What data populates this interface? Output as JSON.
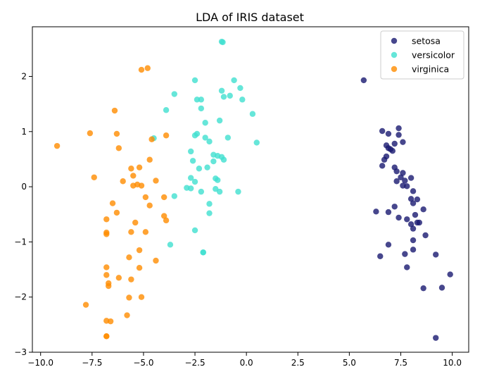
{
  "chart_data": {
    "type": "scatter",
    "title": "LDA of IRIS dataset",
    "xlabel": "",
    "ylabel": "",
    "xlim": [
      -10.4,
      10.8
    ],
    "ylim": [
      -3.0,
      2.9
    ],
    "xticks": [
      -10.0,
      -7.5,
      -5.0,
      -2.5,
      0.0,
      2.5,
      5.0,
      7.5,
      10.0
    ],
    "xtick_labels": [
      "−10.0",
      "−7.5",
      "−5.0",
      "−2.5",
      "0.0",
      "2.5",
      "5.0",
      "7.5",
      "10.0"
    ],
    "yticks": [
      -3,
      -2,
      -1,
      0,
      1,
      2
    ],
    "ytick_labels": [
      "−3",
      "−2",
      "−1",
      "0",
      "1",
      "2"
    ],
    "grid": false,
    "legend_position": "top-right",
    "series": [
      {
        "name": "setosa",
        "color": "#191970",
        "points": [
          [
            5.7,
            1.93
          ],
          [
            6.6,
            1.01
          ],
          [
            6.9,
            0.96
          ],
          [
            7.4,
            1.06
          ],
          [
            7.4,
            0.94
          ],
          [
            7.6,
            0.81
          ],
          [
            6.8,
            0.75
          ],
          [
            6.9,
            0.7
          ],
          [
            7.2,
            0.78
          ],
          [
            7.0,
            0.68
          ],
          [
            7.1,
            0.65
          ],
          [
            6.8,
            0.55
          ],
          [
            6.7,
            0.49
          ],
          [
            6.6,
            0.38
          ],
          [
            7.2,
            0.35
          ],
          [
            7.3,
            0.28
          ],
          [
            7.6,
            0.25
          ],
          [
            7.5,
            0.17
          ],
          [
            7.7,
            0.11
          ],
          [
            8.0,
            0.16
          ],
          [
            7.3,
            0.1
          ],
          [
            7.6,
            0.02
          ],
          [
            7.8,
            0.01
          ],
          [
            8.1,
            -0.08
          ],
          [
            8.0,
            -0.22
          ],
          [
            8.3,
            -0.23
          ],
          [
            8.1,
            -0.3
          ],
          [
            8.6,
            -0.41
          ],
          [
            8.2,
            -0.51
          ],
          [
            6.3,
            -0.45
          ],
          [
            6.9,
            -0.46
          ],
          [
            7.2,
            -0.36
          ],
          [
            7.4,
            -0.56
          ],
          [
            7.8,
            -0.59
          ],
          [
            8.0,
            -0.68
          ],
          [
            8.3,
            -0.65
          ],
          [
            8.4,
            -0.65
          ],
          [
            8.1,
            -0.76
          ],
          [
            8.7,
            -0.88
          ],
          [
            8.1,
            -0.97
          ],
          [
            6.9,
            -1.05
          ],
          [
            6.5,
            -1.26
          ],
          [
            7.7,
            -1.22
          ],
          [
            8.1,
            -1.14
          ],
          [
            9.2,
            -1.23
          ],
          [
            7.8,
            -1.46
          ],
          [
            8.6,
            -1.84
          ],
          [
            9.5,
            -1.83
          ],
          [
            9.9,
            -1.59
          ],
          [
            9.2,
            -2.74
          ]
        ]
      },
      {
        "name": "versicolor",
        "color": "#40e0d0",
        "points": [
          [
            -1.2,
            2.63
          ],
          [
            -1.15,
            2.62
          ],
          [
            -2.5,
            1.93
          ],
          [
            -0.6,
            1.93
          ],
          [
            -0.3,
            1.79
          ],
          [
            -1.2,
            1.74
          ],
          [
            -0.8,
            1.65
          ],
          [
            -1.1,
            1.63
          ],
          [
            -3.5,
            1.68
          ],
          [
            -2.4,
            1.58
          ],
          [
            -2.2,
            1.58
          ],
          [
            -0.2,
            1.58
          ],
          [
            0.3,
            1.32
          ],
          [
            -3.9,
            1.39
          ],
          [
            -2.2,
            1.42
          ],
          [
            -1.3,
            1.2
          ],
          [
            -2.0,
            1.16
          ],
          [
            -2.4,
            0.96
          ],
          [
            -2.5,
            0.93
          ],
          [
            -2.0,
            0.89
          ],
          [
            -0.9,
            0.89
          ],
          [
            -4.5,
            0.88
          ],
          [
            -1.8,
            0.82
          ],
          [
            0.5,
            0.8
          ],
          [
            -2.7,
            0.64
          ],
          [
            -1.6,
            0.58
          ],
          [
            -1.4,
            0.56
          ],
          [
            -1.2,
            0.54
          ],
          [
            -1.1,
            0.49
          ],
          [
            -1.6,
            0.46
          ],
          [
            -2.6,
            0.47
          ],
          [
            -2.3,
            0.33
          ],
          [
            -1.9,
            0.35
          ],
          [
            -1.5,
            0.15
          ],
          [
            -1.4,
            0.12
          ],
          [
            -2.7,
            0.16
          ],
          [
            -2.5,
            0.09
          ],
          [
            -2.9,
            -0.02
          ],
          [
            -2.7,
            -0.03
          ],
          [
            -1.5,
            -0.04
          ],
          [
            -2.2,
            -0.09
          ],
          [
            -1.3,
            -0.09
          ],
          [
            -0.4,
            -0.09
          ],
          [
            -3.5,
            -0.17
          ],
          [
            -1.8,
            -0.31
          ],
          [
            -1.8,
            -0.48
          ],
          [
            -2.5,
            -0.79
          ],
          [
            -3.7,
            -1.05
          ],
          [
            -2.1,
            -1.19
          ],
          [
            -2.1,
            -1.19
          ]
        ]
      },
      {
        "name": "virginica",
        "color": "#ff8c00",
        "points": [
          [
            -5.1,
            2.12
          ],
          [
            -4.8,
            2.15
          ],
          [
            -9.2,
            0.74
          ],
          [
            -7.6,
            0.97
          ],
          [
            -6.4,
            1.38
          ],
          [
            -6.3,
            0.96
          ],
          [
            -6.2,
            0.7
          ],
          [
            -3.9,
            0.93
          ],
          [
            -4.6,
            0.86
          ],
          [
            -4.7,
            0.49
          ],
          [
            -5.6,
            0.33
          ],
          [
            -5.2,
            0.35
          ],
          [
            -7.4,
            0.17
          ],
          [
            -5.5,
            0.2
          ],
          [
            -6.0,
            0.1
          ],
          [
            -4.4,
            0.11
          ],
          [
            -5.5,
            0.02
          ],
          [
            -5.1,
            0.02
          ],
          [
            -5.3,
            0.04
          ],
          [
            -4.9,
            -0.19
          ],
          [
            -4.0,
            -0.19
          ],
          [
            -6.5,
            -0.3
          ],
          [
            -4.7,
            -0.34
          ],
          [
            -6.3,
            -0.47
          ],
          [
            -4.0,
            -0.53
          ],
          [
            -3.9,
            -0.61
          ],
          [
            -6.8,
            -0.59
          ],
          [
            -5.4,
            -0.65
          ],
          [
            -5.6,
            -0.82
          ],
          [
            -4.9,
            -0.82
          ],
          [
            -6.8,
            -0.83
          ],
          [
            -6.8,
            -0.86
          ],
          [
            -5.2,
            -1.15
          ],
          [
            -5.7,
            -1.28
          ],
          [
            -4.4,
            -1.34
          ],
          [
            -6.8,
            -1.46
          ],
          [
            -5.2,
            -1.47
          ],
          [
            -6.8,
            -1.6
          ],
          [
            -6.2,
            -1.65
          ],
          [
            -5.6,
            -1.68
          ],
          [
            -6.7,
            -1.75
          ],
          [
            -6.7,
            -1.8
          ],
          [
            -5.7,
            -2.01
          ],
          [
            -5.1,
            -2.0
          ],
          [
            -7.8,
            -2.14
          ],
          [
            -5.8,
            -2.33
          ],
          [
            -6.8,
            -2.43
          ],
          [
            -6.6,
            -2.44
          ],
          [
            -6.8,
            -2.71
          ],
          [
            -6.8,
            -2.71
          ]
        ]
      }
    ]
  }
}
